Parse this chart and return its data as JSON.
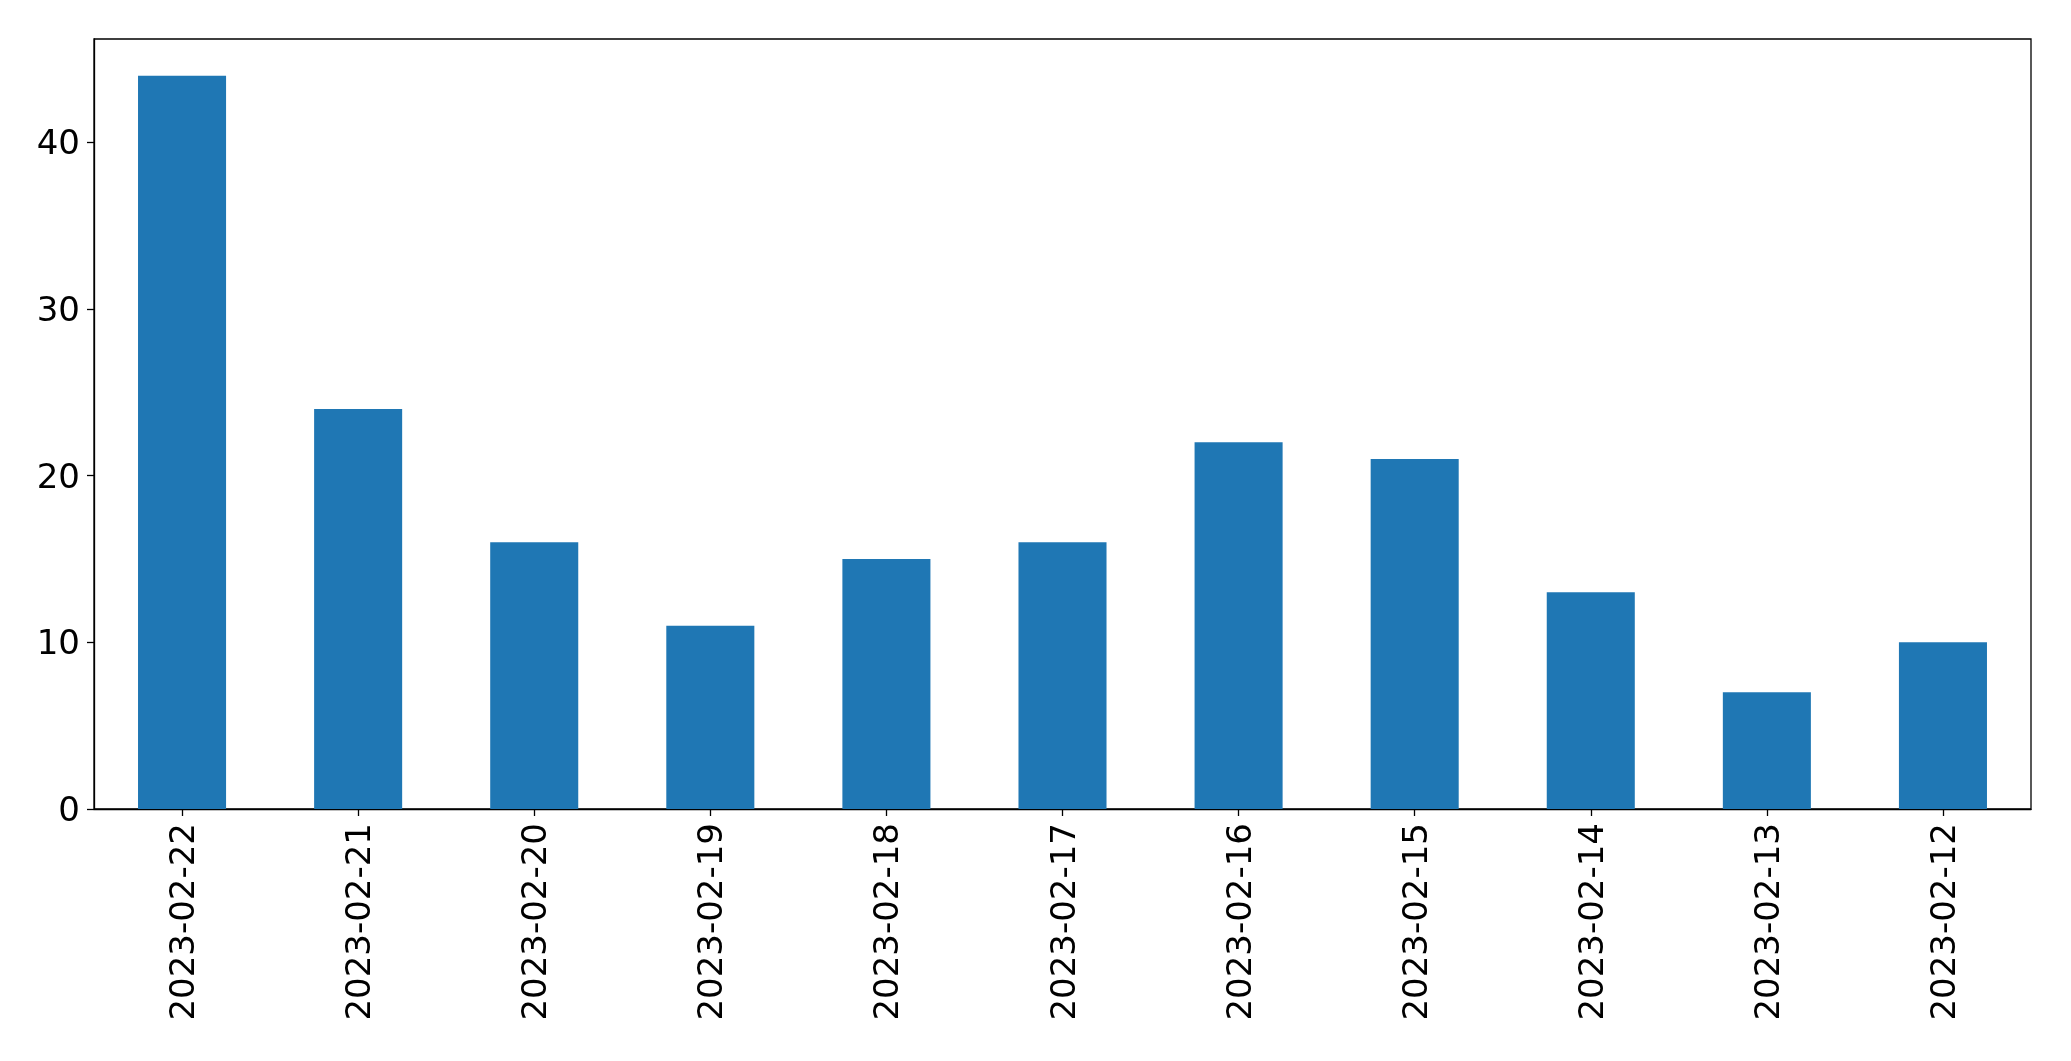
{
  "chart_data": {
    "type": "bar",
    "categories": [
      "2023-02-22",
      "2023-02-21",
      "2023-02-20",
      "2023-02-19",
      "2023-02-18",
      "2023-02-17",
      "2023-02-16",
      "2023-02-15",
      "2023-02-14",
      "2023-02-13",
      "2023-02-12"
    ],
    "values": [
      44,
      24,
      16,
      11,
      15,
      16,
      22,
      21,
      13,
      7,
      10
    ],
    "color": "#1f77b4",
    "ylim": [
      0,
      46.2
    ],
    "yticks": [
      0,
      10,
      20,
      30,
      40
    ]
  }
}
